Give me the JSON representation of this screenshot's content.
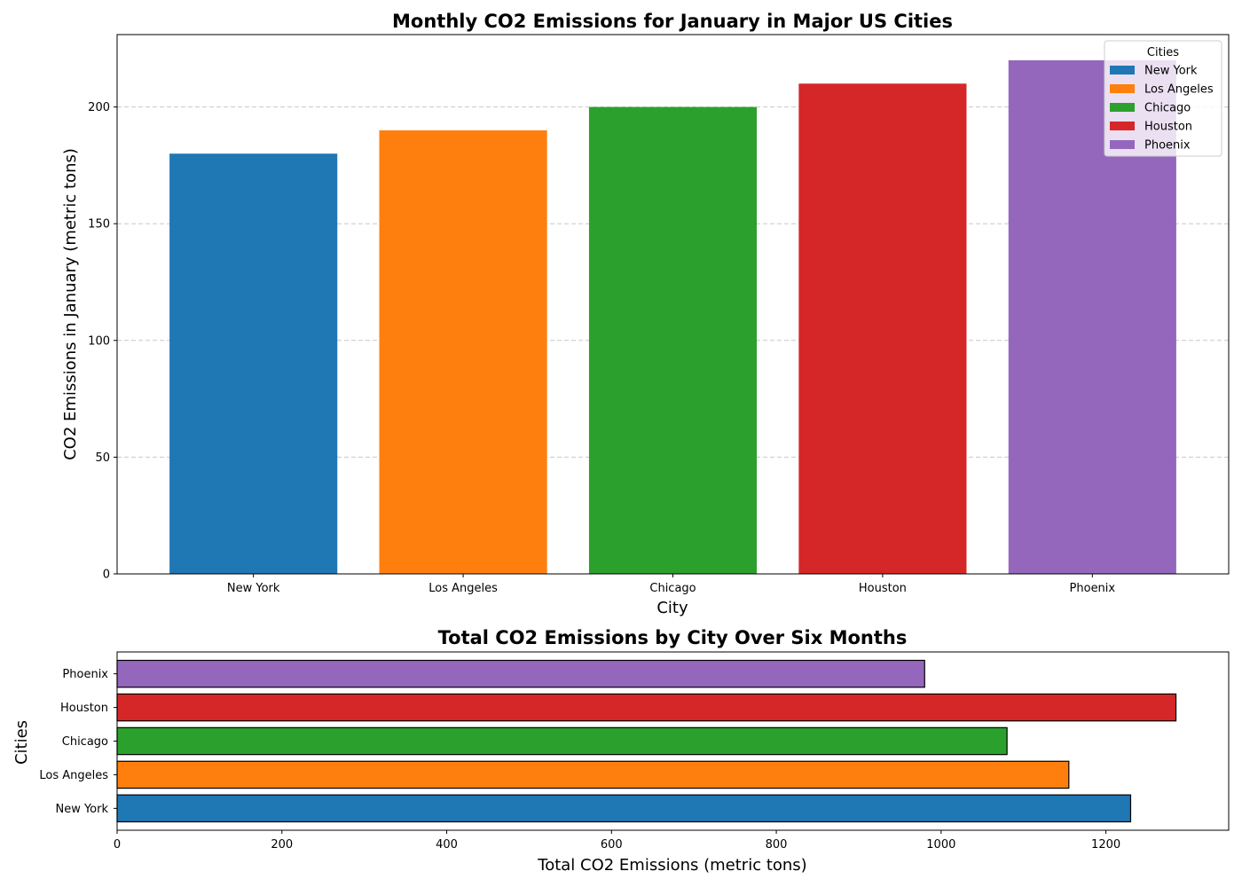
{
  "chart_data": [
    {
      "type": "bar",
      "title": "Monthly CO2 Emissions for January in Major US Cities",
      "xlabel": "City",
      "ylabel": "CO2 Emissions in January (metric tons)",
      "categories": [
        "New York",
        "Los Angeles",
        "Chicago",
        "Houston",
        "Phoenix"
      ],
      "values": [
        180,
        190,
        200,
        210,
        220
      ],
      "colors": [
        "#1f77b4",
        "#ff7f0e",
        "#2ca02c",
        "#d62728",
        "#9467bd"
      ],
      "ylim": [
        0,
        231
      ],
      "yticks": [
        0,
        50,
        100,
        150,
        200
      ],
      "grid": "y-dashed",
      "legend": {
        "title": "Cities",
        "placement": "top-right",
        "entries": [
          "New York",
          "Los Angeles",
          "Chicago",
          "Houston",
          "Phoenix"
        ]
      }
    },
    {
      "type": "bar",
      "orientation": "horizontal",
      "title": "Total CO2 Emissions by City Over Six Months",
      "xlabel": "Total CO2 Emissions (metric tons)",
      "ylabel": "Cities",
      "categories": [
        "New York",
        "Los Angeles",
        "Chicago",
        "Houston",
        "Phoenix"
      ],
      "values": [
        1230,
        1155,
        1080,
        1285,
        980
      ],
      "colors": [
        "#1f77b4",
        "#ff7f0e",
        "#2ca02c",
        "#d62728",
        "#9467bd"
      ],
      "xlim": [
        0,
        1349
      ],
      "xticks": [
        0,
        200,
        400,
        600,
        800,
        1000,
        1200
      ],
      "grid": "none"
    }
  ]
}
